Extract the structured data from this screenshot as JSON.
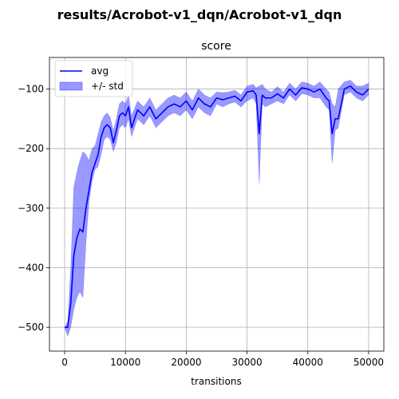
{
  "suptitle": "results/Acrobot-v1_dqn/Acrobot-v1_dqn",
  "chart_data": {
    "type": "line",
    "title": "score",
    "xlabel": "transitions",
    "ylabel": "",
    "xlim": [
      -2500,
      52500
    ],
    "ylim": [
      -540,
      -47
    ],
    "xticks": [
      0,
      10000,
      20000,
      30000,
      40000,
      50000
    ],
    "xtick_labels": [
      "0",
      "10000",
      "20000",
      "30000",
      "40000",
      "50000"
    ],
    "yticks": [
      -500,
      -400,
      -300,
      -200,
      -100
    ],
    "ytick_labels": [
      "−500",
      "−400",
      "−300",
      "−200",
      "−100"
    ],
    "grid": true,
    "legend_placement": "upper-left",
    "series": [
      {
        "name": "avg",
        "kind": "line",
        "color": "#0000ff",
        "x": [
          0,
          500,
          1000,
          1500,
          2000,
          2500,
          3000,
          3500,
          4000,
          4500,
          5000,
          5500,
          6000,
          6500,
          7000,
          7500,
          8000,
          8500,
          9000,
          9500,
          10000,
          10500,
          11000,
          12000,
          13000,
          14000,
          15000,
          16000,
          17000,
          18000,
          19000,
          20000,
          21000,
          22000,
          23000,
          24000,
          25000,
          26000,
          27000,
          28000,
          29000,
          30000,
          31000,
          31500,
          32000,
          32500,
          33000,
          34000,
          35000,
          36000,
          37000,
          38000,
          39000,
          40000,
          41000,
          42000,
          43000,
          43500,
          44000,
          44500,
          45000,
          46000,
          47000,
          48000,
          49000,
          50000
        ],
        "avg": [
          -500,
          -500,
          -460,
          -380,
          -350,
          -335,
          -340,
          -300,
          -270,
          -240,
          -225,
          -210,
          -180,
          -165,
          -160,
          -165,
          -190,
          -170,
          -145,
          -140,
          -145,
          -130,
          -165,
          -135,
          -145,
          -130,
          -150,
          -140,
          -130,
          -125,
          -130,
          -120,
          -135,
          -115,
          -125,
          -130,
          -115,
          -118,
          -115,
          -112,
          -120,
          -105,
          -103,
          -110,
          -175,
          -110,
          -115,
          -115,
          -108,
          -115,
          -100,
          -110,
          -98,
          -100,
          -105,
          -100,
          -115,
          -120,
          -175,
          -150,
          -150,
          -100,
          -95,
          -105,
          -110,
          -100
        ]
      },
      {
        "name": "+/- std",
        "kind": "band",
        "color": "#0000ff",
        "opacity": 0.4,
        "x": [
          0,
          500,
          1000,
          1500,
          2000,
          2500,
          3000,
          3500,
          4000,
          4500,
          5000,
          5500,
          6000,
          6500,
          7000,
          7500,
          8000,
          8500,
          9000,
          9500,
          10000,
          10500,
          11000,
          12000,
          13000,
          14000,
          15000,
          16000,
          17000,
          18000,
          19000,
          20000,
          21000,
          22000,
          23000,
          24000,
          25000,
          26000,
          27000,
          28000,
          29000,
          30000,
          31000,
          31500,
          32000,
          32500,
          33000,
          34000,
          35000,
          36000,
          37000,
          38000,
          39000,
          40000,
          41000,
          42000,
          43000,
          43500,
          44000,
          44500,
          45000,
          46000,
          47000,
          48000,
          49000,
          50000
        ],
        "lower": [
          -500,
          -515,
          -500,
          -470,
          -450,
          -440,
          -450,
          -360,
          -290,
          -255,
          -235,
          -230,
          -210,
          -185,
          -180,
          -185,
          -205,
          -190,
          -165,
          -160,
          -165,
          -150,
          -180,
          -150,
          -160,
          -145,
          -165,
          -155,
          -145,
          -140,
          -145,
          -135,
          -150,
          -130,
          -140,
          -145,
          -125,
          -130,
          -125,
          -122,
          -130,
          -120,
          -115,
          -125,
          -260,
          -125,
          -130,
          -125,
          -120,
          -125,
          -110,
          -120,
          -108,
          -110,
          -115,
          -115,
          -130,
          -135,
          -225,
          -170,
          -165,
          -110,
          -105,
          -115,
          -120,
          -110
        ],
        "upper": [
          -500,
          -490,
          -400,
          -265,
          -240,
          -220,
          -205,
          -210,
          -220,
          -200,
          -195,
          -175,
          -155,
          -145,
          -140,
          -148,
          -170,
          -150,
          -125,
          -120,
          -125,
          -110,
          -145,
          -120,
          -130,
          -115,
          -135,
          -125,
          -115,
          -110,
          -115,
          -105,
          -120,
          -100,
          -110,
          -115,
          -105,
          -106,
          -105,
          -102,
          -110,
          -95,
          -92,
          -98,
          -95,
          -92,
          -100,
          -105,
          -96,
          -105,
          -90,
          -100,
          -88,
          -90,
          -95,
          -88,
          -100,
          -105,
          -125,
          -130,
          -100,
          -88,
          -85,
          -95,
          -95,
          -90
        ]
      }
    ]
  }
}
